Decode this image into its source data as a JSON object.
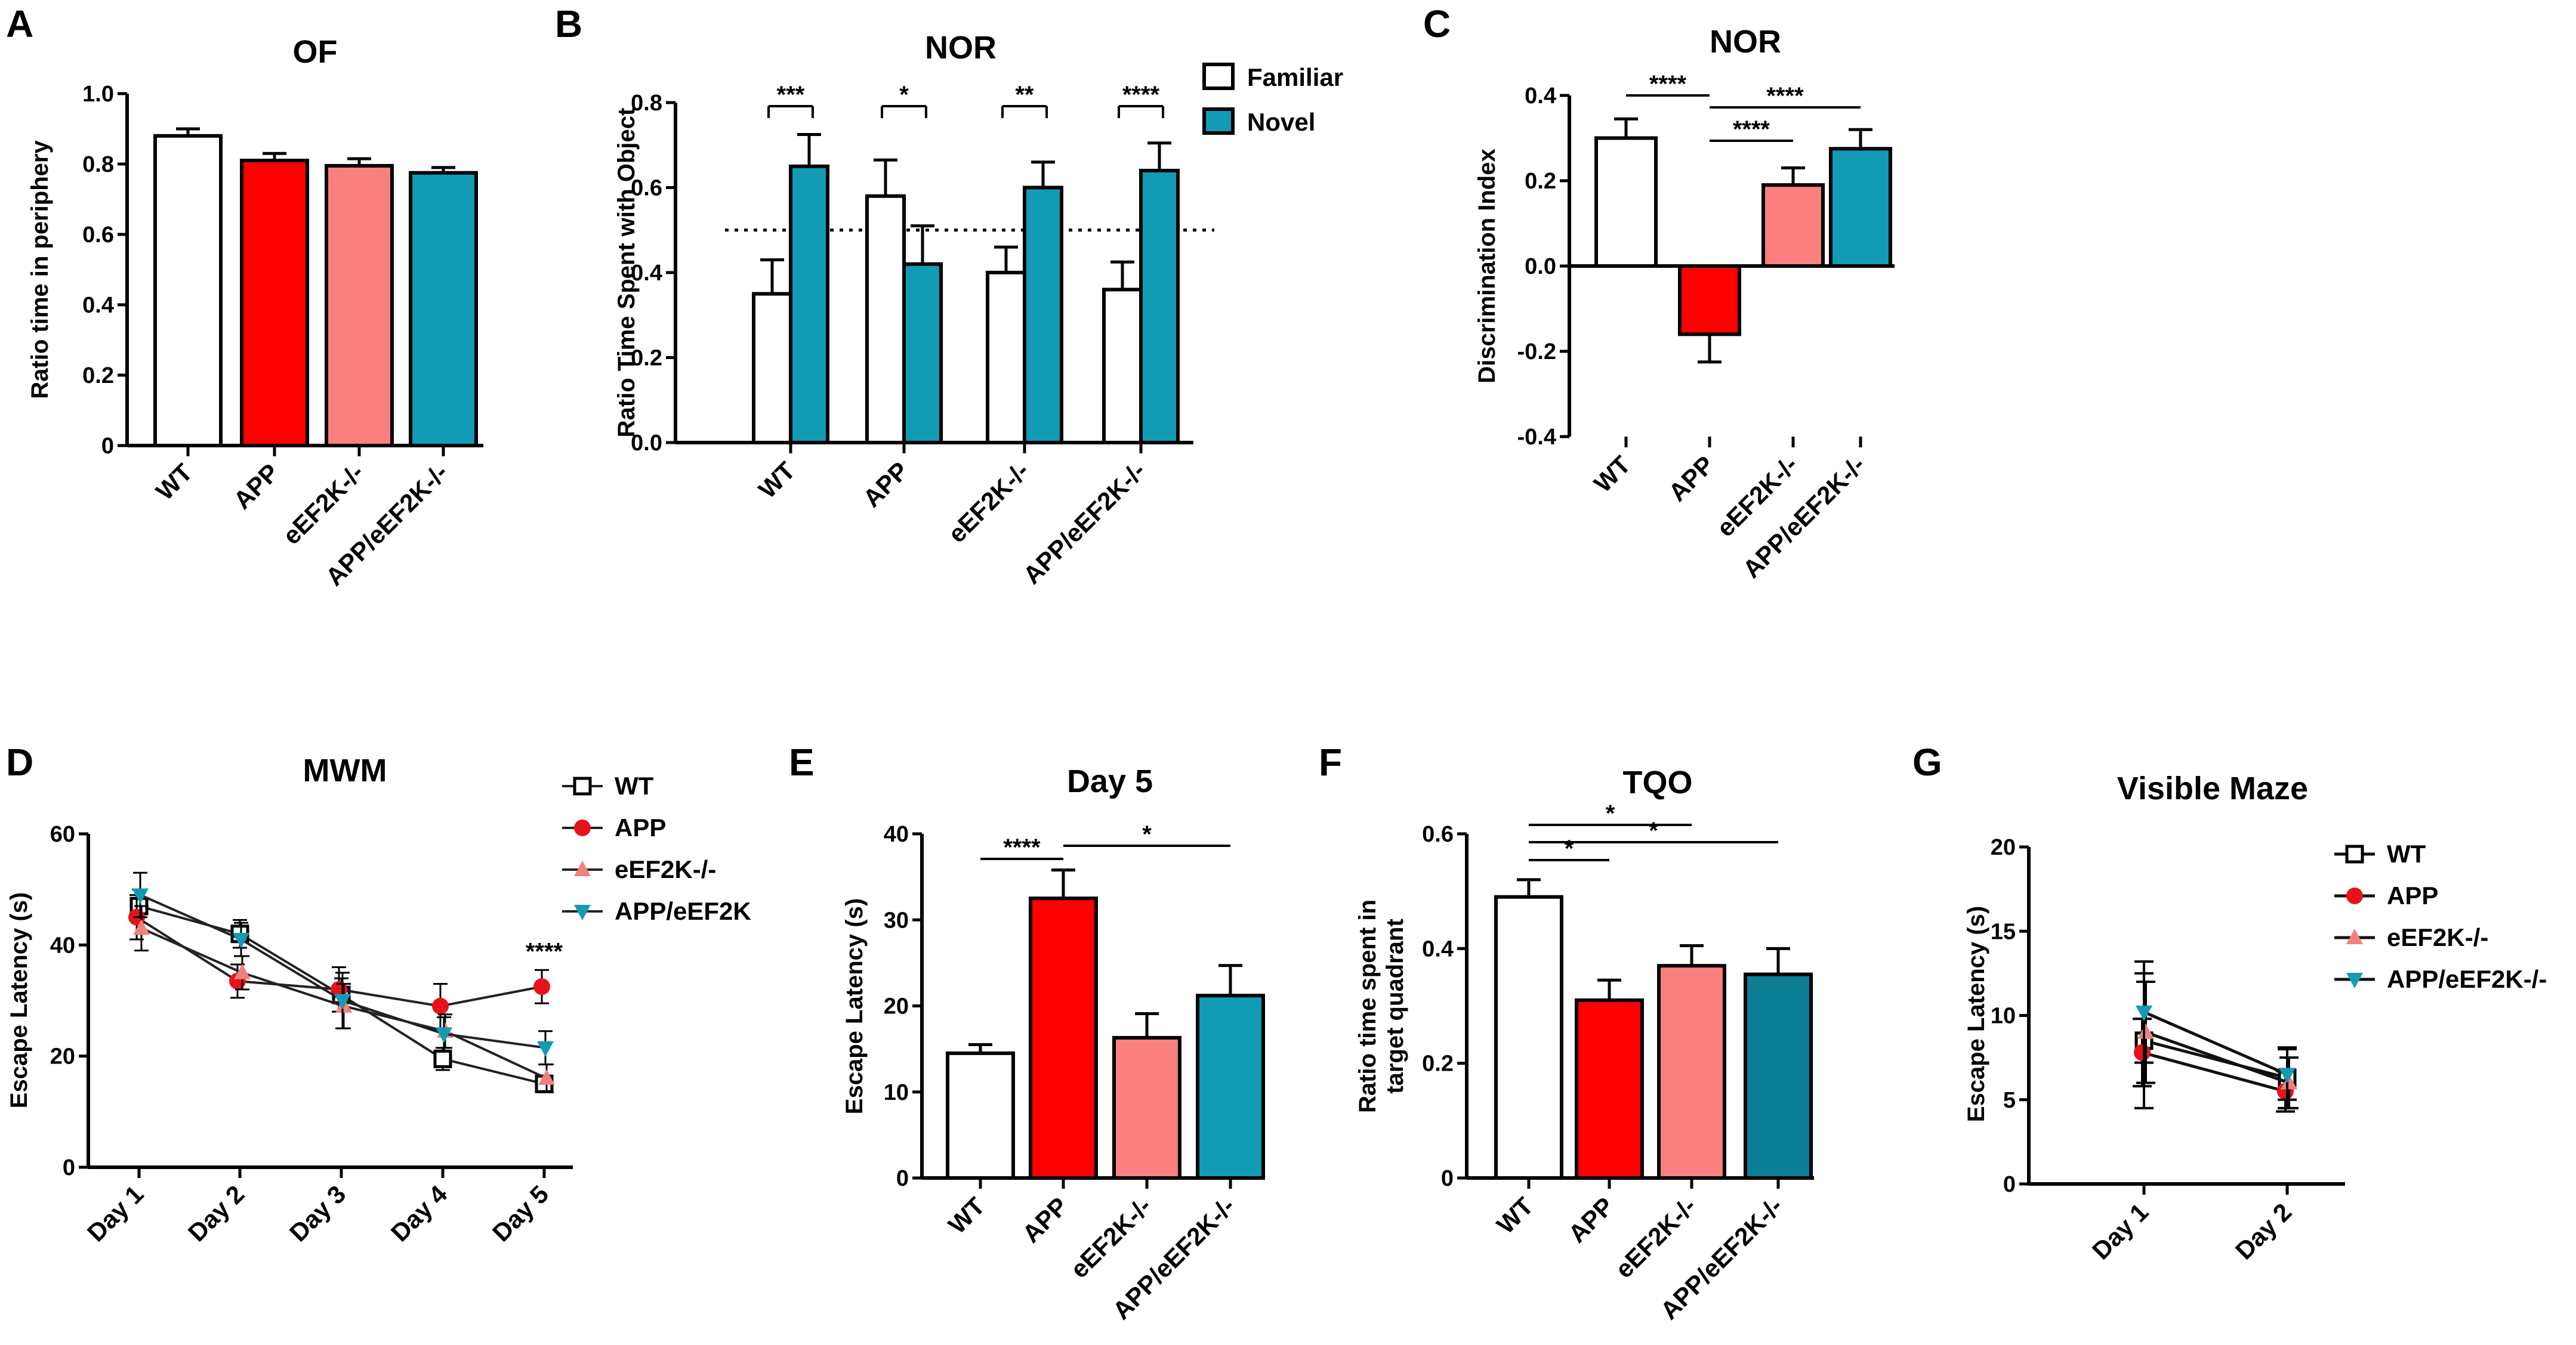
{
  "figure": {
    "panels": [
      "A",
      "B",
      "C",
      "D",
      "E",
      "F",
      "G"
    ]
  },
  "colors": {
    "WT": "#ffffff",
    "APP": "#ff0000",
    "eEF2K": "#fa8080",
    "APP_eEF2K": "#119bb5",
    "APP_eEF2K_dark": "#0c7f96",
    "Familiar": "#ffffff",
    "Novel": "#119bb5",
    "line_WT": "#000000",
    "line_APP": "#e8121b",
    "line_eEF2K": "#f2807e",
    "line_APP_eEF2K": "#149bb4"
  },
  "chart_data": [
    {
      "panel": "A",
      "type": "bar",
      "title": "OF",
      "xlabel": "",
      "ylabel": "Ratio time in periphery",
      "categories": [
        "WT",
        "APP",
        "eEF2K-/-",
        "APP/eEF2K-/-"
      ],
      "values": [
        0.88,
        0.81,
        0.795,
        0.775
      ],
      "errors": [
        0.02,
        0.02,
        0.02,
        0.015
      ],
      "ylim": [
        0,
        1.0
      ],
      "yticks": [
        0,
        0.2,
        0.4,
        0.6,
        0.8,
        1.0
      ],
      "ytick_labels": [
        "0",
        "0.2",
        "0.4",
        "0.6",
        "0.8",
        "1.0"
      ],
      "grid": false
    },
    {
      "panel": "B",
      "type": "bar",
      "title": "NOR",
      "xlabel": "",
      "ylabel": "Ratio Time Spent with Object",
      "categories": [
        "WT",
        "APP",
        "eEF2K-/-",
        "APP/eEF2K-/-"
      ],
      "series": [
        {
          "name": "Familiar",
          "values": [
            0.35,
            0.58,
            0.4,
            0.36
          ],
          "errors": [
            0.08,
            0.085,
            0.06,
            0.065
          ]
        },
        {
          "name": "Novel",
          "values": [
            0.65,
            0.42,
            0.6,
            0.64
          ],
          "errors": [
            0.075,
            0.09,
            0.06,
            0.065
          ]
        }
      ],
      "reference_line": 0.5,
      "significance": [
        "***",
        "*",
        "**",
        "****"
      ],
      "legend_position": "top-right",
      "ylim": [
        0,
        0.8
      ],
      "yticks": [
        0,
        0.2,
        0.4,
        0.6,
        0.8
      ],
      "ytick_labels": [
        "0.0",
        "0.2",
        "0.4",
        "0.6",
        "0.8"
      ],
      "grid": false
    },
    {
      "panel": "C",
      "type": "bar",
      "title": "NOR",
      "xlabel": "",
      "ylabel": "Discrimination Index",
      "categories": [
        "WT",
        "APP",
        "eEF2K-/-",
        "APP/eEF2K-/-"
      ],
      "values": [
        0.3,
        -0.16,
        0.19,
        0.275
      ],
      "errors": [
        0.045,
        0.065,
        0.04,
        0.045
      ],
      "comparisons": [
        {
          "from": "WT",
          "to": "APP",
          "label": "****"
        },
        {
          "from": "APP",
          "to": "eEF2K-/-",
          "label": "****"
        },
        {
          "from": "APP",
          "to": "APP/eEF2K-/-",
          "label": "****"
        }
      ],
      "ylim": [
        -0.4,
        0.4
      ],
      "yticks": [
        -0.4,
        -0.2,
        0,
        0.2,
        0.4
      ],
      "ytick_labels": [
        "-0.4",
        "-0.2",
        "0.0",
        "0.2",
        "0.4"
      ],
      "grid": false
    },
    {
      "panel": "D",
      "type": "line",
      "title": "MWM",
      "xlabel": "",
      "ylabel": "Escape Latency (s)",
      "x": [
        "Day 1",
        "Day 2",
        "Day 3",
        "Day 4",
        "Day 5"
      ],
      "series": [
        {
          "name": "WT",
          "values": [
            47,
            42,
            31,
            19.5,
            15
          ],
          "errors": [
            3,
            2.5,
            3,
            2,
            1.5
          ]
        },
        {
          "name": "APP",
          "values": [
            45,
            33.5,
            32,
            29,
            32.5
          ],
          "errors": [
            4,
            3,
            4,
            4,
            3
          ]
        },
        {
          "name": "eEF2K-/-",
          "values": [
            43,
            35,
            29,
            24.5,
            16
          ],
          "errors": [
            4,
            3,
            4,
            3,
            2.5
          ]
        },
        {
          "name": "APP/eEF2K",
          "values": [
            49,
            41,
            30,
            24,
            21.5
          ],
          "errors": [
            4,
            3,
            5,
            3,
            3
          ]
        }
      ],
      "annotations": [
        {
          "x": "Day 5",
          "label": "****"
        }
      ],
      "legend_position": "top-right",
      "ylim": [
        0,
        60
      ],
      "yticks": [
        0,
        20,
        40,
        60
      ],
      "ytick_labels": [
        "0",
        "20",
        "40",
        "60"
      ],
      "grid": false
    },
    {
      "panel": "E",
      "type": "bar",
      "title": "Day 5",
      "xlabel": "",
      "ylabel": "Escape Latency (s)",
      "categories": [
        "WT",
        "APP",
        "eEF2K-/-",
        "APP/eEF2K-/-"
      ],
      "values": [
        14.5,
        32.5,
        16.3,
        21.2
      ],
      "errors": [
        1.0,
        3.3,
        2.8,
        3.5
      ],
      "comparisons": [
        {
          "from": "WT",
          "to": "APP",
          "label": "****"
        },
        {
          "from": "APP",
          "to": "APP/eEF2K-/-",
          "label": "*"
        }
      ],
      "ylim": [
        0,
        40
      ],
      "yticks": [
        0,
        10,
        20,
        30,
        40
      ],
      "ytick_labels": [
        "0",
        "10",
        "20",
        "30",
        "40"
      ],
      "grid": false
    },
    {
      "panel": "F",
      "type": "bar",
      "title": "TQO",
      "xlabel": "",
      "ylabel": "Ratio time spent in target quadrant",
      "ylabel_lines": [
        "Ratio time spent in",
        "target quadrant"
      ],
      "categories": [
        "WT",
        "APP",
        "eEF2K-/-",
        "APP/eEF2K-/-"
      ],
      "values": [
        0.49,
        0.31,
        0.37,
        0.355
      ],
      "errors": [
        0.03,
        0.035,
        0.035,
        0.045
      ],
      "comparisons": [
        {
          "from": "WT",
          "to": "eEF2K-/-",
          "label": "*"
        },
        {
          "from": "WT",
          "to": "APP/eEF2K-/-",
          "label": "*"
        },
        {
          "from": "WT",
          "to": "APP",
          "label": "*"
        }
      ],
      "ylim": [
        0,
        0.6
      ],
      "yticks": [
        0,
        0.2,
        0.4,
        0.6
      ],
      "ytick_labels": [
        "0",
        "0.2",
        "0.4",
        "0.6"
      ],
      "grid": false
    },
    {
      "panel": "G",
      "type": "line",
      "title": "Visible Maze",
      "xlabel": "",
      "ylabel": "Escape Latency (s)",
      "x": [
        "Day 1",
        "Day 2"
      ],
      "series": [
        {
          "name": "WT",
          "values": [
            8.5,
            6.3
          ],
          "errors": [
            4.0,
            1.8
          ]
        },
        {
          "name": "APP",
          "values": [
            7.8,
            5.5
          ],
          "errors": [
            2.0,
            1.2
          ]
        },
        {
          "name": "eEF2K-/-",
          "values": [
            9.0,
            6.0
          ],
          "errors": [
            3.0,
            1.5
          ]
        },
        {
          "name": "APP/eEF2K-/-",
          "values": [
            10.2,
            6.5
          ],
          "errors": [
            3.0,
            1.5
          ]
        }
      ],
      "legend_position": "top-right",
      "ylim": [
        0,
        20
      ],
      "yticks": [
        0,
        5,
        10,
        15,
        20
      ],
      "ytick_labels": [
        "0",
        "5",
        "10",
        "15",
        "20"
      ],
      "grid": false
    }
  ]
}
